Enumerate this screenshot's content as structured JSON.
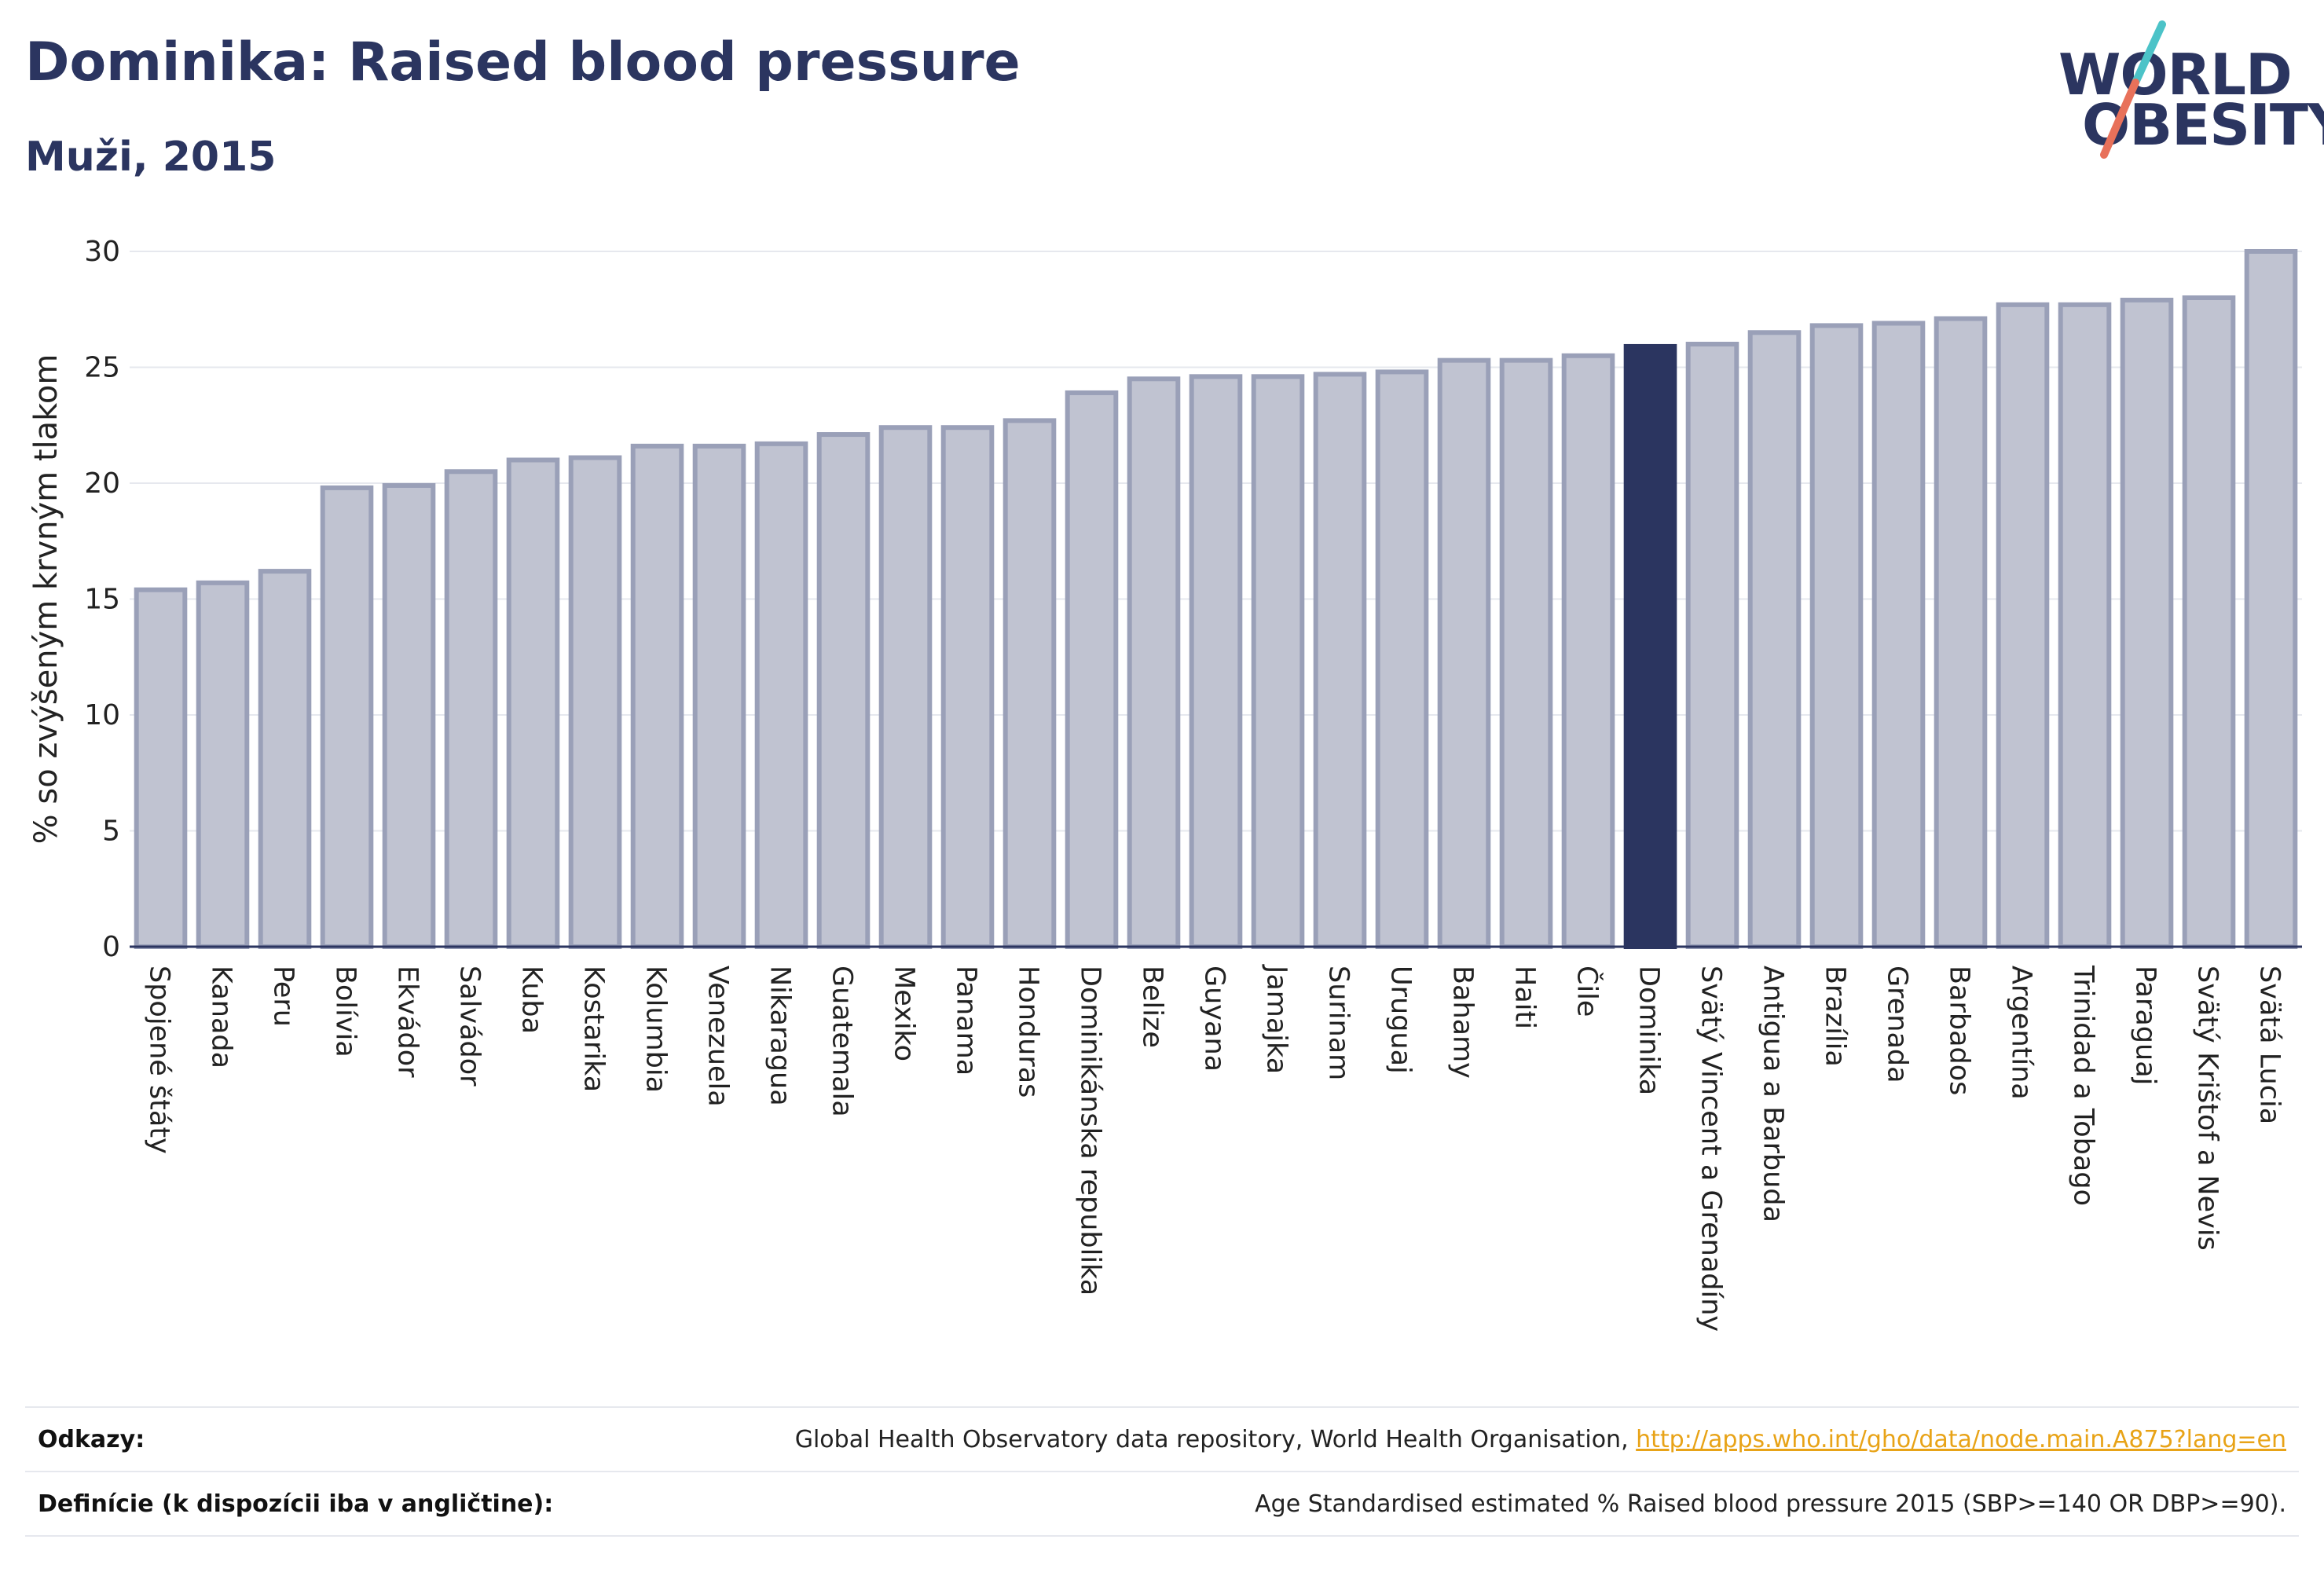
{
  "header": {
    "title": "Dominika: Raised blood pressure",
    "subtitle": "Muži, 2015"
  },
  "logo": {
    "line1": "WORLD",
    "line2": "OBESITY",
    "slash_colors": [
      "#4cc3c8",
      "#e8715a"
    ]
  },
  "footer": {
    "references_label": "Odkazy:",
    "references_text": "Global Health Observatory data repository, World Health Organisation, ",
    "references_link": "http://apps.who.int/gho/data/node.main.A875?lang=en",
    "definitions_label": "Definície (k dispozícii iba v angličtine):",
    "definitions_text": "Age Standardised estimated % Raised blood pressure 2015 (SBP>=140 OR DBP>=90)."
  },
  "colors": {
    "bar_fill": "#c0c3d1",
    "bar_stroke": "#9aa0b8",
    "highlight": "#2b3560",
    "grid": "#e6e8ee",
    "axis": "#2b3560"
  },
  "chart_data": {
    "type": "bar",
    "title": "Dominika: Raised blood pressure",
    "subtitle": "Muži, 2015",
    "xlabel": "",
    "ylabel": "% so zvýšeným krvným tlakom",
    "ylim": [
      0,
      30
    ],
    "yticks": [
      0,
      5,
      10,
      15,
      20,
      25,
      30
    ],
    "grid": true,
    "highlight": "Dominika",
    "categories": [
      "Spojené štáty",
      "Kanada",
      "Peru",
      "Bolívia",
      "Ekvádor",
      "Salvádor",
      "Kuba",
      "Kostarika",
      "Kolumbia",
      "Venezuela",
      "Nikaragua",
      "Guatemala",
      "Mexiko",
      "Panama",
      "Honduras",
      "Dominikánska republika",
      "Belize",
      "Guyana",
      "Jamajka",
      "Surinam",
      "Uruguaj",
      "Bahamy",
      "Haiti",
      "Čile",
      "Dominika",
      "Svätý Vincent a Grenadíny",
      "Antigua a Barbuda",
      "Brazília",
      "Grenada",
      "Barbados",
      "Argentína",
      "Trinidad a Tobago",
      "Paraguaj",
      "Svätý Krištof a Nevis",
      "Svätá Lucia"
    ],
    "values": [
      15.4,
      15.7,
      16.2,
      19.8,
      19.9,
      20.5,
      21.0,
      21.1,
      21.6,
      21.6,
      21.7,
      22.1,
      22.4,
      22.4,
      22.7,
      23.9,
      24.5,
      24.6,
      24.6,
      24.7,
      24.8,
      25.3,
      25.3,
      25.5,
      25.9,
      26.0,
      26.5,
      26.8,
      26.9,
      27.1,
      27.7,
      27.7,
      27.9,
      28.0,
      30.0
    ]
  }
}
